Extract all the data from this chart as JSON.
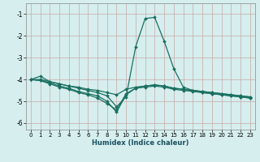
{
  "xlabel": "Humidex (Indice chaleur)",
  "ylabel": "",
  "bg_color": "#d6eeee",
  "grid_color": "#c8a8a8",
  "line_color": "#1a7060",
  "xlim": [
    -0.5,
    23.5
  ],
  "ylim": [
    -6.3,
    -0.5
  ],
  "yticks": [
    -6,
    -5,
    -4,
    -3,
    -2,
    -1
  ],
  "xticks": [
    0,
    1,
    2,
    3,
    4,
    5,
    6,
    7,
    8,
    9,
    10,
    11,
    12,
    13,
    14,
    15,
    16,
    17,
    18,
    19,
    20,
    21,
    22,
    23
  ],
  "series": [
    {
      "x": [
        0,
        1,
        2,
        3,
        4,
        5,
        6,
        7,
        8,
        9,
        10,
        11,
        12,
        13,
        14,
        15,
        16,
        17,
        18,
        19,
        20,
        21,
        22,
        23
      ],
      "y": [
        -4.0,
        -3.85,
        -4.1,
        -4.2,
        -4.3,
        -4.4,
        -4.5,
        -4.6,
        -4.75,
        -5.25,
        -4.8,
        -2.5,
        -1.2,
        -1.15,
        -2.25,
        -3.5,
        -4.35,
        -4.5,
        -4.6,
        -4.65,
        -4.7,
        -4.75,
        -4.8,
        -4.85
      ]
    },
    {
      "x": [
        0,
        1,
        2,
        3,
        4,
        5,
        6,
        7,
        8,
        9,
        10,
        11,
        12,
        13,
        14,
        15,
        16,
        17,
        18,
        19,
        20,
        21,
        22,
        23
      ],
      "y": [
        -4.0,
        -4.05,
        -4.2,
        -4.35,
        -4.45,
        -4.6,
        -4.7,
        -4.85,
        -5.1,
        -5.4,
        -4.65,
        -4.4,
        -4.35,
        -4.3,
        -4.35,
        -4.45,
        -4.5,
        -4.55,
        -4.6,
        -4.65,
        -4.7,
        -4.75,
        -4.8,
        -4.85
      ]
    },
    {
      "x": [
        0,
        1,
        2,
        3,
        4,
        5,
        6,
        7,
        8,
        9,
        10,
        11,
        12,
        13,
        14,
        15,
        16,
        17,
        18,
        19,
        20,
        21,
        22,
        23
      ],
      "y": [
        -4.0,
        -4.05,
        -4.15,
        -4.3,
        -4.4,
        -4.55,
        -4.65,
        -4.75,
        -5.0,
        -5.5,
        -4.7,
        -4.4,
        -4.3,
        -4.25,
        -4.3,
        -4.4,
        -4.45,
        -4.5,
        -4.55,
        -4.6,
        -4.65,
        -4.7,
        -4.75,
        -4.8
      ]
    },
    {
      "x": [
        0,
        1,
        2,
        3,
        4,
        5,
        6,
        7,
        8,
        9,
        10,
        11,
        12,
        13,
        14,
        15,
        16,
        17,
        18,
        19,
        20,
        21,
        22,
        23
      ],
      "y": [
        -4.0,
        -4.0,
        -4.1,
        -4.2,
        -4.3,
        -4.35,
        -4.45,
        -4.5,
        -4.6,
        -4.7,
        -4.45,
        -4.35,
        -4.3,
        -4.25,
        -4.3,
        -4.4,
        -4.45,
        -4.5,
        -4.55,
        -4.6,
        -4.65,
        -4.7,
        -4.75,
        -4.8
      ]
    }
  ],
  "xlabel_fontsize": 6,
  "tick_fontsize": 5,
  "linewidth": 0.9,
  "markersize": 2.0
}
